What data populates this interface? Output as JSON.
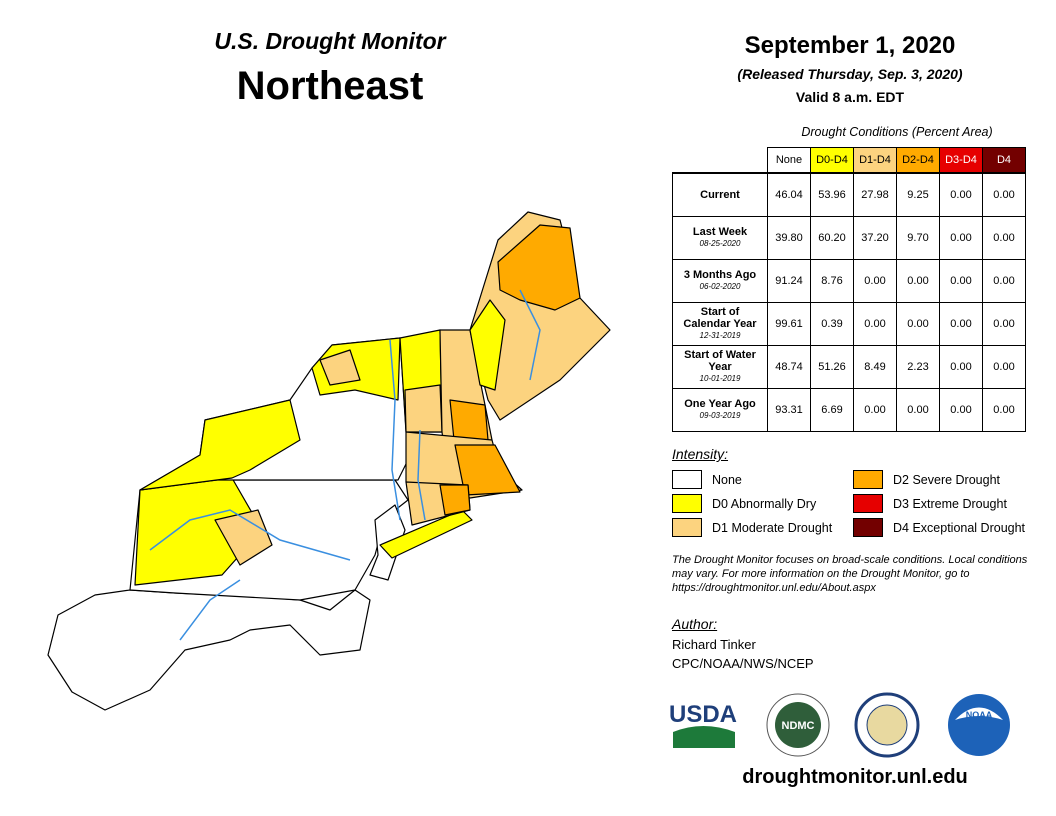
{
  "header": {
    "program": "U.S. Drought Monitor",
    "region": "Northeast",
    "date": "September 1, 2020",
    "released": "(Released Thursday, Sep. 3, 2020)",
    "valid": "Valid 8 a.m. EDT"
  },
  "table": {
    "caption": "Drought Conditions (Percent Area)",
    "columns": [
      {
        "label": "None",
        "color": "#ffffff",
        "text_color": "#000000"
      },
      {
        "label": "D0-D4",
        "color": "#ffff00",
        "text_color": "#000000"
      },
      {
        "label": "D1-D4",
        "color": "#fcd37f",
        "text_color": "#000000"
      },
      {
        "label": "D2-D4",
        "color": "#ffaa00",
        "text_color": "#000000"
      },
      {
        "label": "D3-D4",
        "color": "#e60000",
        "text_color": "#ffffff"
      },
      {
        "label": "D4",
        "color": "#730000",
        "text_color": "#ffffff"
      }
    ],
    "rows": [
      {
        "label": "Current",
        "values": [
          "46.04",
          "53.96",
          "27.98",
          "9.25",
          "0.00",
          "0.00"
        ]
      },
      {
        "label": "Last Week",
        "date": "08-25-2020",
        "values": [
          "39.80",
          "60.20",
          "37.20",
          "9.70",
          "0.00",
          "0.00"
        ]
      },
      {
        "label": "3 Months Ago",
        "date": "06-02-2020",
        "values": [
          "91.24",
          "8.76",
          "0.00",
          "0.00",
          "0.00",
          "0.00"
        ]
      },
      {
        "label": "Start of Calendar Year",
        "date": "12-31-2019",
        "values": [
          "99.61",
          "0.39",
          "0.00",
          "0.00",
          "0.00",
          "0.00"
        ]
      },
      {
        "label": "Start of Water Year",
        "date": "10-01-2019",
        "values": [
          "48.74",
          "51.26",
          "8.49",
          "2.23",
          "0.00",
          "0.00"
        ]
      },
      {
        "label": "One Year Ago",
        "date": "09-03-2019",
        "values": [
          "93.31",
          "6.69",
          "0.00",
          "0.00",
          "0.00",
          "0.00"
        ]
      }
    ]
  },
  "legend": {
    "title": "Intensity:",
    "items": [
      {
        "label": "None",
        "color": "#ffffff"
      },
      {
        "label": "D0 Abnormally Dry",
        "color": "#ffff00"
      },
      {
        "label": "D1 Moderate Drought",
        "color": "#fcd37f"
      },
      {
        "label": "D2 Severe Drought",
        "color": "#ffaa00"
      },
      {
        "label": "D3 Extreme Drought",
        "color": "#e60000"
      },
      {
        "label": "D4 Exceptional Drought",
        "color": "#730000"
      }
    ]
  },
  "note": "The Drought Monitor focuses on broad-scale conditions. Local conditions may vary. For more information on the Drought Monitor, go to https://droughtmonitor.unl.edu/About.aspx",
  "author": {
    "heading": "Author:",
    "name": "Richard Tinker",
    "org": "CPC/NOAA/NWS/NCEP"
  },
  "logos": [
    "USDA",
    "NDMC",
    "NOAA"
  ],
  "website": "droughtmonitor.unl.edu"
}
